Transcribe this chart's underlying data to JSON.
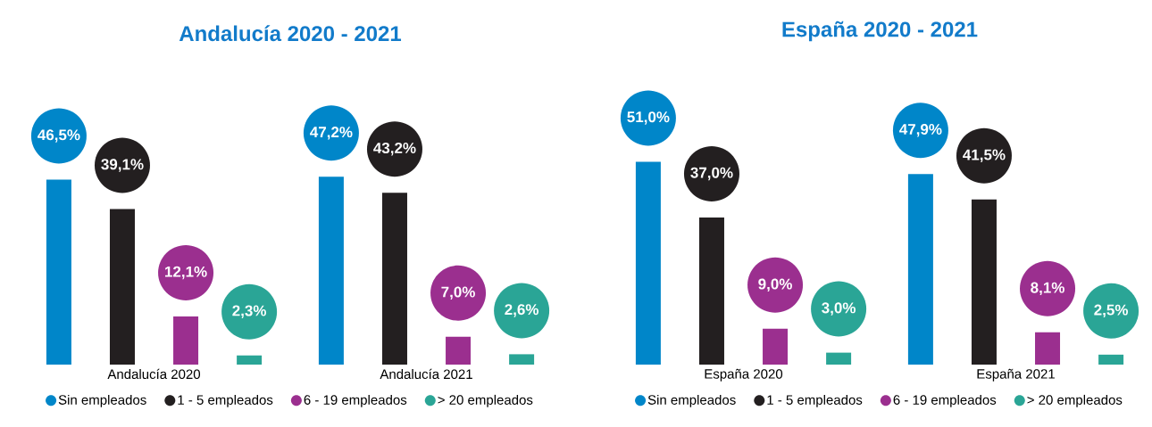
{
  "chart_data": [
    {
      "type": "bar",
      "title": "Andalucía 2020 - 2021",
      "categories": [
        "Andalucía 2020",
        "Andalucía 2021"
      ],
      "legend": "bottom",
      "series": [
        {
          "name": "Sin empleados",
          "color": "#0086c9",
          "values": [
            46.5,
            47.2
          ],
          "value_labels": [
            "46,5%",
            "47,2%"
          ]
        },
        {
          "name": "1 - 5 empleados",
          "color": "#231f20",
          "values": [
            39.1,
            43.2
          ],
          "value_labels": [
            "39,1%",
            "43,2%"
          ]
        },
        {
          "name": "6 - 19 empleados",
          "color": "#9b2f8f",
          "values": [
            12.1,
            7.0
          ],
          "value_labels": [
            "12,1%",
            "7,0%"
          ]
        },
        {
          "name": "> 20 empleados",
          "color": "#2aa596",
          "values": [
            2.3,
            2.6
          ],
          "value_labels": [
            "2,3%",
            "2,6%"
          ]
        }
      ]
    },
    {
      "type": "bar",
      "title": "España 2020 - 2021",
      "categories": [
        "España 2020",
        "España 2021"
      ],
      "legend": "bottom",
      "series": [
        {
          "name": "Sin empleados",
          "color": "#0086c9",
          "values": [
            51.0,
            47.9
          ],
          "value_labels": [
            "51,0%",
            "47,9%"
          ]
        },
        {
          "name": "1 - 5 empleados",
          "color": "#231f20",
          "values": [
            37.0,
            41.5
          ],
          "value_labels": [
            "37,0%",
            "41,5%"
          ]
        },
        {
          "name": "6 - 19 empleados",
          "color": "#9b2f8f",
          "values": [
            9.0,
            8.1
          ],
          "value_labels": [
            "9,0%",
            "8,1%"
          ]
        },
        {
          "name": "> 20 empleados",
          "color": "#2aa596",
          "values": [
            3.0,
            2.5
          ],
          "value_labels": [
            "3,0%",
            "2,5%"
          ]
        }
      ]
    }
  ]
}
